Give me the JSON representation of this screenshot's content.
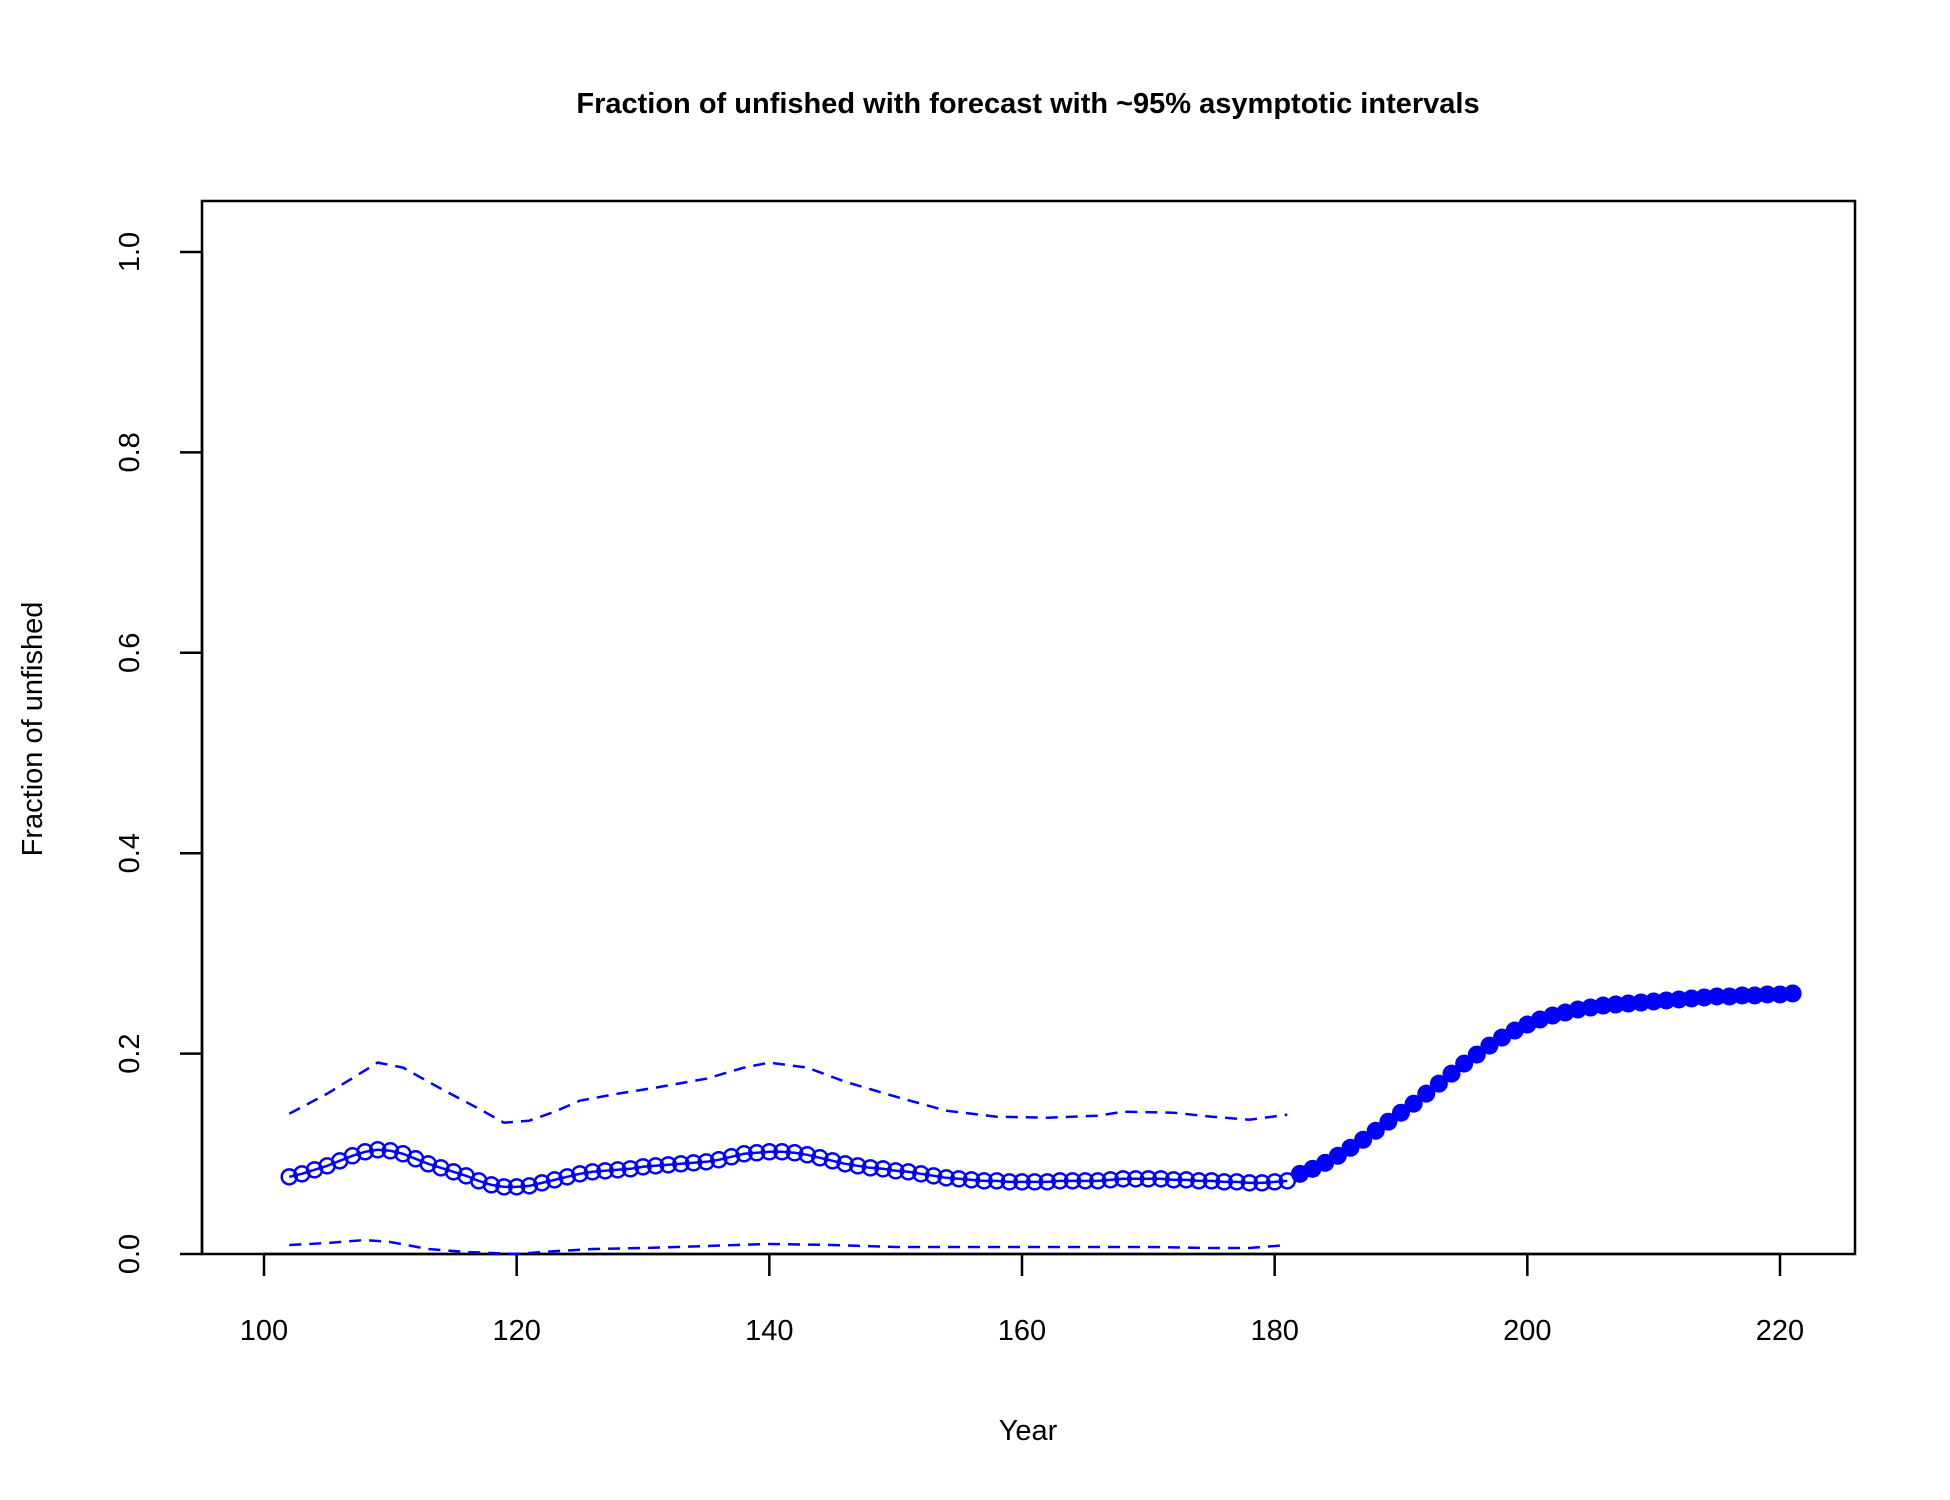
{
  "chart_data": {
    "type": "line",
    "title": "Fraction of unfished with forecast with ~95% asymptotic intervals",
    "xlabel": "Year",
    "ylabel": "Fraction of unfished",
    "xlim": [
      95,
      225
    ],
    "ylim": [
      0,
      1.05
    ],
    "xticks": [
      "100",
      "120",
      "140",
      "160",
      "180",
      "200",
      "220"
    ],
    "yticks": [
      "0.0",
      "0.2",
      "0.4",
      "0.6",
      "0.8",
      "1.0"
    ],
    "grid": false,
    "color": "#0000ff",
    "series": [
      {
        "name": "historical",
        "marker": "open-circle",
        "x_start": 102,
        "values": [
          0.077,
          0.08,
          0.084,
          0.088,
          0.093,
          0.098,
          0.102,
          0.104,
          0.103,
          0.1,
          0.095,
          0.09,
          0.086,
          0.082,
          0.078,
          0.073,
          0.069,
          0.067,
          0.067,
          0.068,
          0.071,
          0.074,
          0.077,
          0.08,
          0.082,
          0.083,
          0.084,
          0.085,
          0.087,
          0.088,
          0.089,
          0.09,
          0.091,
          0.092,
          0.094,
          0.097,
          0.1,
          0.101,
          0.102,
          0.102,
          0.101,
          0.099,
          0.096,
          0.093,
          0.09,
          0.088,
          0.086,
          0.085,
          0.083,
          0.082,
          0.08,
          0.078,
          0.076,
          0.075,
          0.074,
          0.073,
          0.073,
          0.072,
          0.072,
          0.072,
          0.072,
          0.073,
          0.073,
          0.073,
          0.073,
          0.074,
          0.075,
          0.075,
          0.075,
          0.075,
          0.074,
          0.074,
          0.073,
          0.073,
          0.072,
          0.072,
          0.071,
          0.071,
          0.072,
          0.073
        ]
      },
      {
        "name": "forecast",
        "marker": "filled-circle",
        "x_start": 182,
        "values": [
          0.08,
          0.085,
          0.091,
          0.098,
          0.106,
          0.114,
          0.123,
          0.132,
          0.141,
          0.15,
          0.16,
          0.17,
          0.18,
          0.19,
          0.199,
          0.208,
          0.216,
          0.223,
          0.229,
          0.234,
          0.238,
          0.241,
          0.244,
          0.246,
          0.248,
          0.249,
          0.25,
          0.251,
          0.252,
          0.253,
          0.254,
          0.255,
          0.256,
          0.257,
          0.257,
          0.258,
          0.258,
          0.259,
          0.259,
          0.26
        ]
      },
      {
        "name": "upper 95% interval",
        "style": "dashed",
        "x": [
          102,
          105,
          109,
          111,
          114,
          117,
          119,
          121,
          123,
          125,
          128,
          131,
          135,
          138,
          140,
          143,
          146,
          150,
          154,
          158,
          162,
          166,
          168,
          172,
          175,
          178,
          181
        ],
        "y": [
          0.14,
          0.16,
          0.191,
          0.186,
          0.165,
          0.145,
          0.131,
          0.133,
          0.142,
          0.153,
          0.16,
          0.166,
          0.175,
          0.186,
          0.191,
          0.186,
          0.172,
          0.157,
          0.143,
          0.137,
          0.136,
          0.138,
          0.142,
          0.141,
          0.137,
          0.134,
          0.139
        ]
      },
      {
        "name": "lower 95% interval",
        "style": "dashed",
        "x": [
          102,
          105,
          108,
          110,
          113,
          116,
          120,
          122,
          126,
          130,
          135,
          140,
          145,
          150,
          160,
          170,
          175,
          178,
          181
        ],
        "y": [
          0.009,
          0.011,
          0.014,
          0.012,
          0.005,
          0.002,
          0.0,
          0.002,
          0.005,
          0.006,
          0.008,
          0.01,
          0.009,
          0.007,
          0.007,
          0.007,
          0.006,
          0.006,
          0.009
        ]
      }
    ]
  }
}
